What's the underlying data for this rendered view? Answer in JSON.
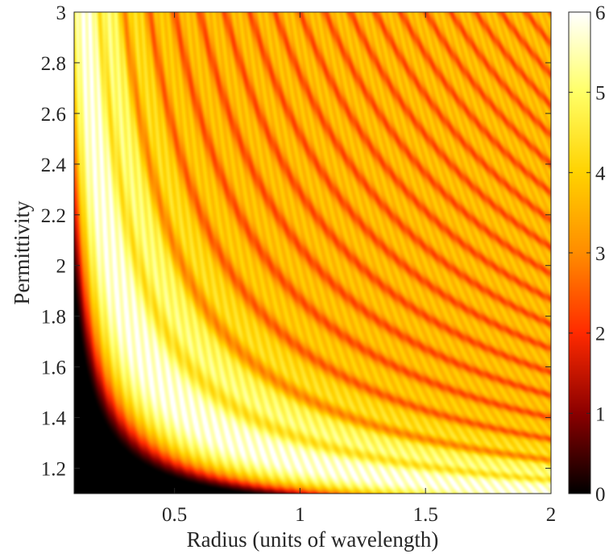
{
  "chart_data": {
    "type": "heatmap",
    "title": "",
    "xlabel": "Radius (units of wavelength)",
    "ylabel": "Permittivity",
    "xlim": [
      0.1,
      2
    ],
    "ylim": [
      1.1,
      3
    ],
    "x_ticks": [
      0.5,
      1,
      1.5,
      2
    ],
    "y_ticks": [
      1.2,
      1.4,
      1.6,
      1.8,
      2,
      2.2,
      2.4,
      2.6,
      2.8,
      3
    ],
    "x_tick_labels": [
      "0.5",
      "1",
      "1.5",
      "2"
    ],
    "y_tick_labels": [
      "1.2",
      "1.4",
      "1.6",
      "1.8",
      "2",
      "2.2",
      "2.4",
      "2.6",
      "2.8",
      "3"
    ],
    "colorbar": {
      "colormap": "hot",
      "clim": [
        0,
        6
      ],
      "ticks": [
        0,
        1,
        2,
        3,
        4,
        5,
        6
      ],
      "tick_labels": [
        "0",
        "1",
        "2",
        "3",
        "4",
        "5",
        "6"
      ]
    },
    "colormap_stops": [
      "#000000",
      "#8b0000",
      "#ff2a00",
      "#ff8c00",
      "#ffd200",
      "#ffff66",
      "#ffffff"
    ],
    "background_color": "#0a0000"
  }
}
